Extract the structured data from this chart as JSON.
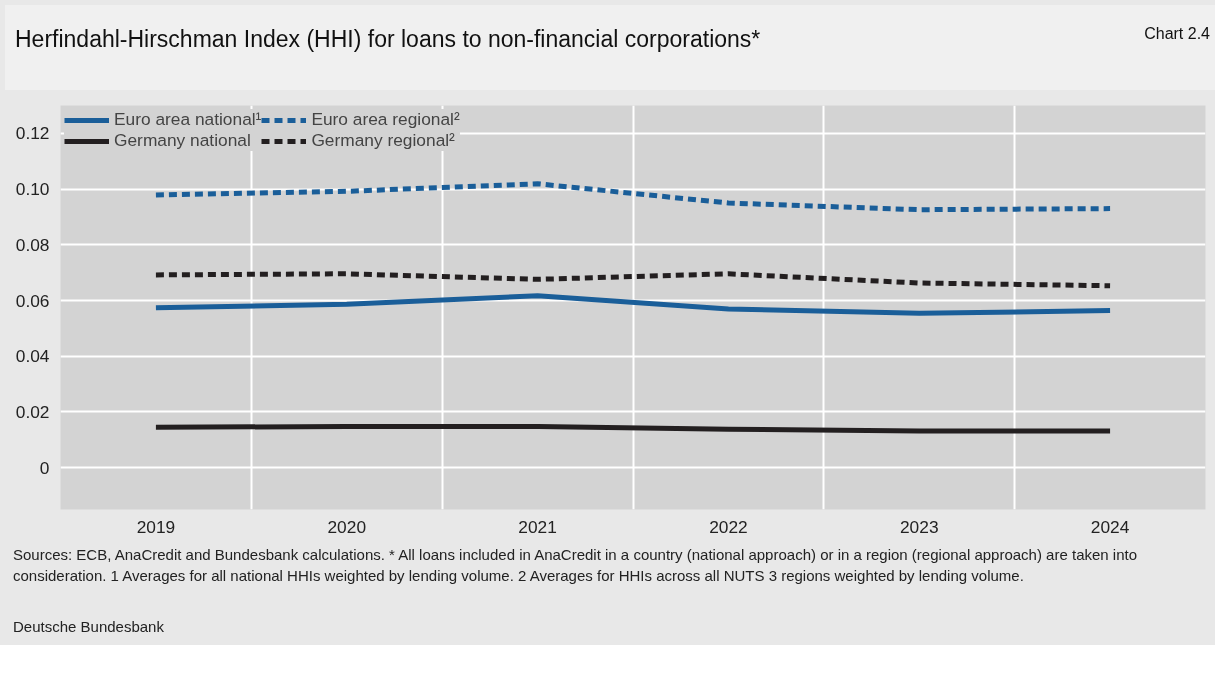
{
  "chart_data": {
    "type": "line",
    "title": "Herfindahl-Hirschman Index (HHI) for loans to non-financial corporations*",
    "categories": [
      "2019",
      "2020",
      "2021",
      "2022",
      "2023",
      "2024"
    ],
    "series": [
      {
        "name": "Euro area national¹",
        "color": "#1a5e99",
        "line_style": "solid",
        "values": [
          0.0574,
          0.0587,
          0.0617,
          0.057,
          0.0554,
          0.0564
        ]
      },
      {
        "name": "Germany national",
        "color": "#231f20",
        "line_style": "solid",
        "values": [
          0.0145,
          0.0148,
          0.0148,
          0.0138,
          0.0132,
          0.0132
        ]
      },
      {
        "name": "Euro area regional²",
        "color": "#1a5e99",
        "line_style": "dashed",
        "values": [
          0.0979,
          0.0992,
          0.1019,
          0.095,
          0.0926,
          0.093
        ]
      },
      {
        "name": "Germany regional²",
        "color": "#231f20",
        "line_style": "dashed",
        "values": [
          0.0692,
          0.0696,
          0.0676,
          0.0696,
          0.0663,
          0.0653
        ]
      }
    ],
    "ylim": [
      -0.015,
      0.13
    ],
    "yticks": [
      {
        "value": 0,
        "label": "0"
      },
      {
        "value": 0.02,
        "label": "0.02"
      },
      {
        "value": 0.04,
        "label": "0.04"
      },
      {
        "value": 0.06,
        "label": "0.06"
      },
      {
        "value": 0.08,
        "label": "0.08"
      },
      {
        "value": 0.1,
        "label": "0.10"
      },
      {
        "value": 0.12,
        "label": "0.12"
      }
    ],
    "grid": true,
    "legend": "top left",
    "marker": "none",
    "annotations": [
      "Chart 2.4",
      "Sources: ECB, AnaCredit and Bundesbank calculations. * All loans included in AnaCredit in a country (national approach) or in a region (regional approach) are taken into consideration. 1 Averages for all national HHIs weighted by lending volume. 2 Averages for HHIs across all NUTS 3 regions weighted by lending volume.",
      "Deutsche Bundesbank"
    ]
  }
}
